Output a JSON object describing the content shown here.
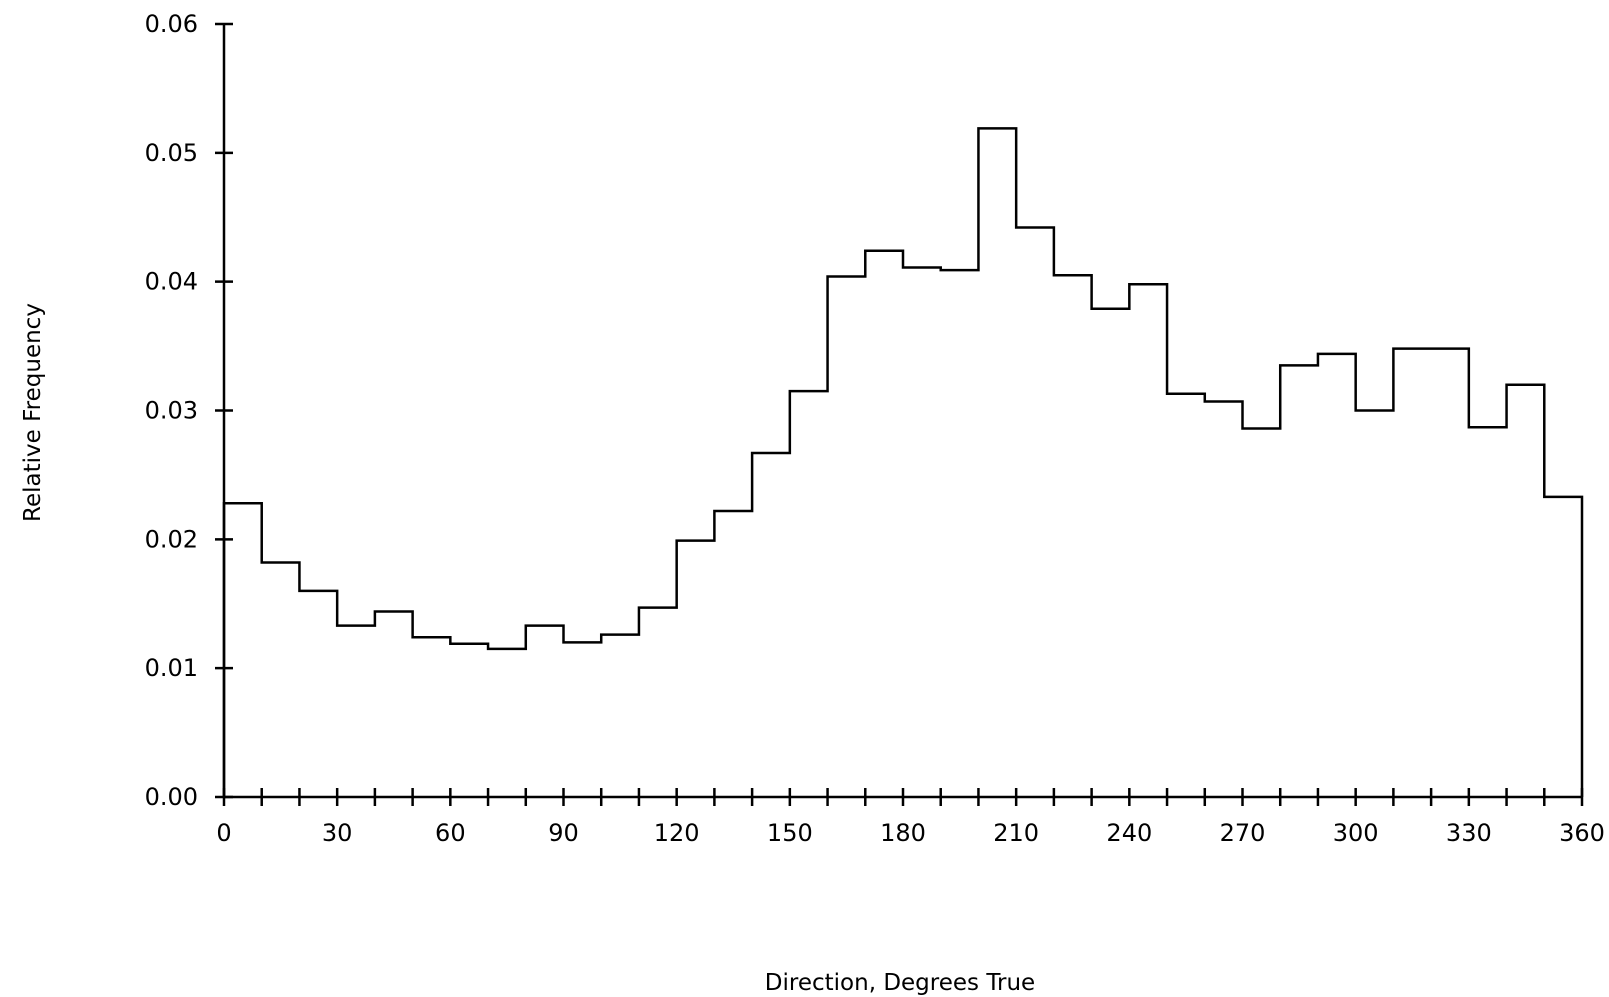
{
  "chart_data": {
    "type": "bar",
    "histogram": true,
    "xlabel": "Direction, Degrees True",
    "ylabel": "Relative Frequency",
    "xlim": [
      0,
      360
    ],
    "ylim": [
      0,
      0.06
    ],
    "bin_width": 10,
    "bin_edges": [
      0,
      10,
      20,
      30,
      40,
      50,
      60,
      70,
      80,
      90,
      100,
      110,
      120,
      130,
      140,
      150,
      160,
      170,
      180,
      190,
      200,
      210,
      220,
      230,
      240,
      250,
      260,
      270,
      280,
      290,
      300,
      310,
      320,
      330,
      340,
      350,
      360
    ],
    "values": [
      0.0228,
      0.0182,
      0.016,
      0.0133,
      0.0144,
      0.0124,
      0.0119,
      0.0115,
      0.0133,
      0.012,
      0.0126,
      0.0147,
      0.0199,
      0.0222,
      0.0267,
      0.0315,
      0.0404,
      0.0424,
      0.0411,
      0.0409,
      0.0519,
      0.0442,
      0.0405,
      0.0379,
      0.0398,
      0.0313,
      0.0307,
      0.0286,
      0.0335,
      0.0344,
      0.03,
      0.0348,
      0.0348,
      0.0287,
      0.032,
      0.0233
    ],
    "x_ticks": [
      0,
      30,
      60,
      90,
      120,
      150,
      180,
      210,
      240,
      270,
      300,
      330,
      360
    ],
    "x_tick_labels": [
      "0",
      "30",
      "60",
      "90",
      "120",
      "150",
      "180",
      "210",
      "240",
      "270",
      "300",
      "330",
      "360"
    ],
    "x_minor_tick_step": 10,
    "y_ticks": [
      0.0,
      0.01,
      0.02,
      0.03,
      0.04,
      0.05,
      0.06
    ],
    "y_tick_labels": [
      "0.00",
      "0.01",
      "0.02",
      "0.03",
      "0.04",
      "0.05",
      "0.06"
    ],
    "grid": false,
    "legend": "none"
  }
}
